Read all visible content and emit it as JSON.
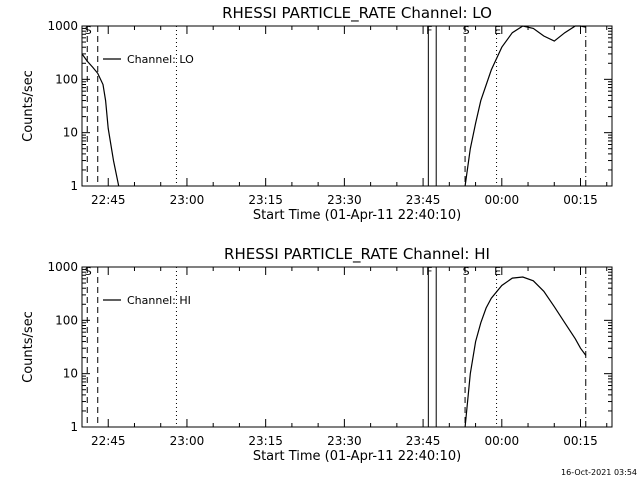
{
  "colors": {
    "background": "#ffffff",
    "foreground": "#000000"
  },
  "timestamp": "16-Oct-2021 03:54",
  "chart_data": [
    {
      "type": "line",
      "title": "RHESSI PARTICLE_RATE Channel: LO",
      "xlabel": "Start Time (01-Apr-11 22:40:10)",
      "ylabel": "Counts/sec",
      "y_scale": "log",
      "xlim": [
        "22:40",
        "00:21"
      ],
      "ylim": [
        1,
        1000
      ],
      "xticks": [
        "22:45",
        "23:00",
        "23:15",
        "23:30",
        "23:45",
        "00:00",
        "00:15"
      ],
      "yticks": [
        "1",
        "10",
        "100",
        "1000"
      ],
      "legend": "top-left",
      "grid": false,
      "series": [
        {
          "name": "Channel: LO",
          "segments": [
            {
              "x": [
                "22:40",
                "22:41",
                "22:42",
                "22:43",
                "22:44",
                "22:44.5",
                "22:45",
                "22:46",
                "22:47"
              ],
              "y": [
                300,
                220,
                170,
                130,
                80,
                40,
                12,
                3,
                1
              ]
            },
            {
              "x": [
                "23:53",
                "23:54",
                "23:55",
                "23:56",
                "23:58",
                "00:00",
                "00:02",
                "00:04",
                "00:06",
                "00:08",
                "00:10",
                "00:12",
                "00:14",
                "00:15",
                "00:16"
              ],
              "y": [
                1,
                5,
                15,
                40,
                150,
                400,
                750,
                1000,
                900,
                650,
                520,
                750,
                1000,
                1000,
                950
              ]
            }
          ]
        }
      ],
      "annotations": [
        {
          "label": "S",
          "time": "22:41",
          "style": "dashed"
        },
        {
          "label": "",
          "time": "22:43",
          "style": "dashed"
        },
        {
          "label": "",
          "time": "22:58",
          "style": "dotted"
        },
        {
          "label": "F",
          "time": "23:46",
          "style": "solid"
        },
        {
          "label": "",
          "time": "23:47.5",
          "style": "solid"
        },
        {
          "label": "S",
          "time": "23:53",
          "style": "dashed"
        },
        {
          "label": "E",
          "time": "23:59",
          "style": "dotted"
        },
        {
          "label": "",
          "time": "00:16",
          "style": "dash-dot"
        }
      ]
    },
    {
      "type": "line",
      "title": "RHESSI PARTICLE_RATE Channel: HI",
      "xlabel": "Start Time (01-Apr-11 22:40:10)",
      "ylabel": "Counts/sec",
      "y_scale": "log",
      "xlim": [
        "22:40",
        "00:21"
      ],
      "ylim": [
        1,
        1000
      ],
      "xticks": [
        "22:45",
        "23:00",
        "23:15",
        "23:30",
        "23:45",
        "00:00",
        "00:15"
      ],
      "yticks": [
        "1",
        "10",
        "100",
        "1000"
      ],
      "legend": "top-left",
      "grid": false,
      "series": [
        {
          "name": "Channel: HI",
          "segments": [
            {
              "x": [
                "23:53",
                "23:54",
                "23:55",
                "23:56",
                "23:57",
                "23:58",
                "00:00",
                "00:02",
                "00:04",
                "00:06",
                "00:08",
                "00:10",
                "00:12",
                "00:14",
                "00:15",
                "00:16"
              ],
              "y": [
                1,
                10,
                40,
                90,
                170,
                260,
                450,
                620,
                650,
                550,
                350,
                180,
                90,
                45,
                30,
                22
              ]
            }
          ]
        }
      ],
      "annotations": [
        {
          "label": "S",
          "time": "22:41",
          "style": "dashed"
        },
        {
          "label": "",
          "time": "22:43",
          "style": "dashed"
        },
        {
          "label": "",
          "time": "22:58",
          "style": "dotted"
        },
        {
          "label": "F",
          "time": "23:46",
          "style": "solid"
        },
        {
          "label": "",
          "time": "23:47.5",
          "style": "solid"
        },
        {
          "label": "S",
          "time": "23:53",
          "style": "dashed"
        },
        {
          "label": "E",
          "time": "23:59",
          "style": "dotted"
        },
        {
          "label": "",
          "time": "00:16",
          "style": "dash-dot"
        }
      ]
    }
  ]
}
